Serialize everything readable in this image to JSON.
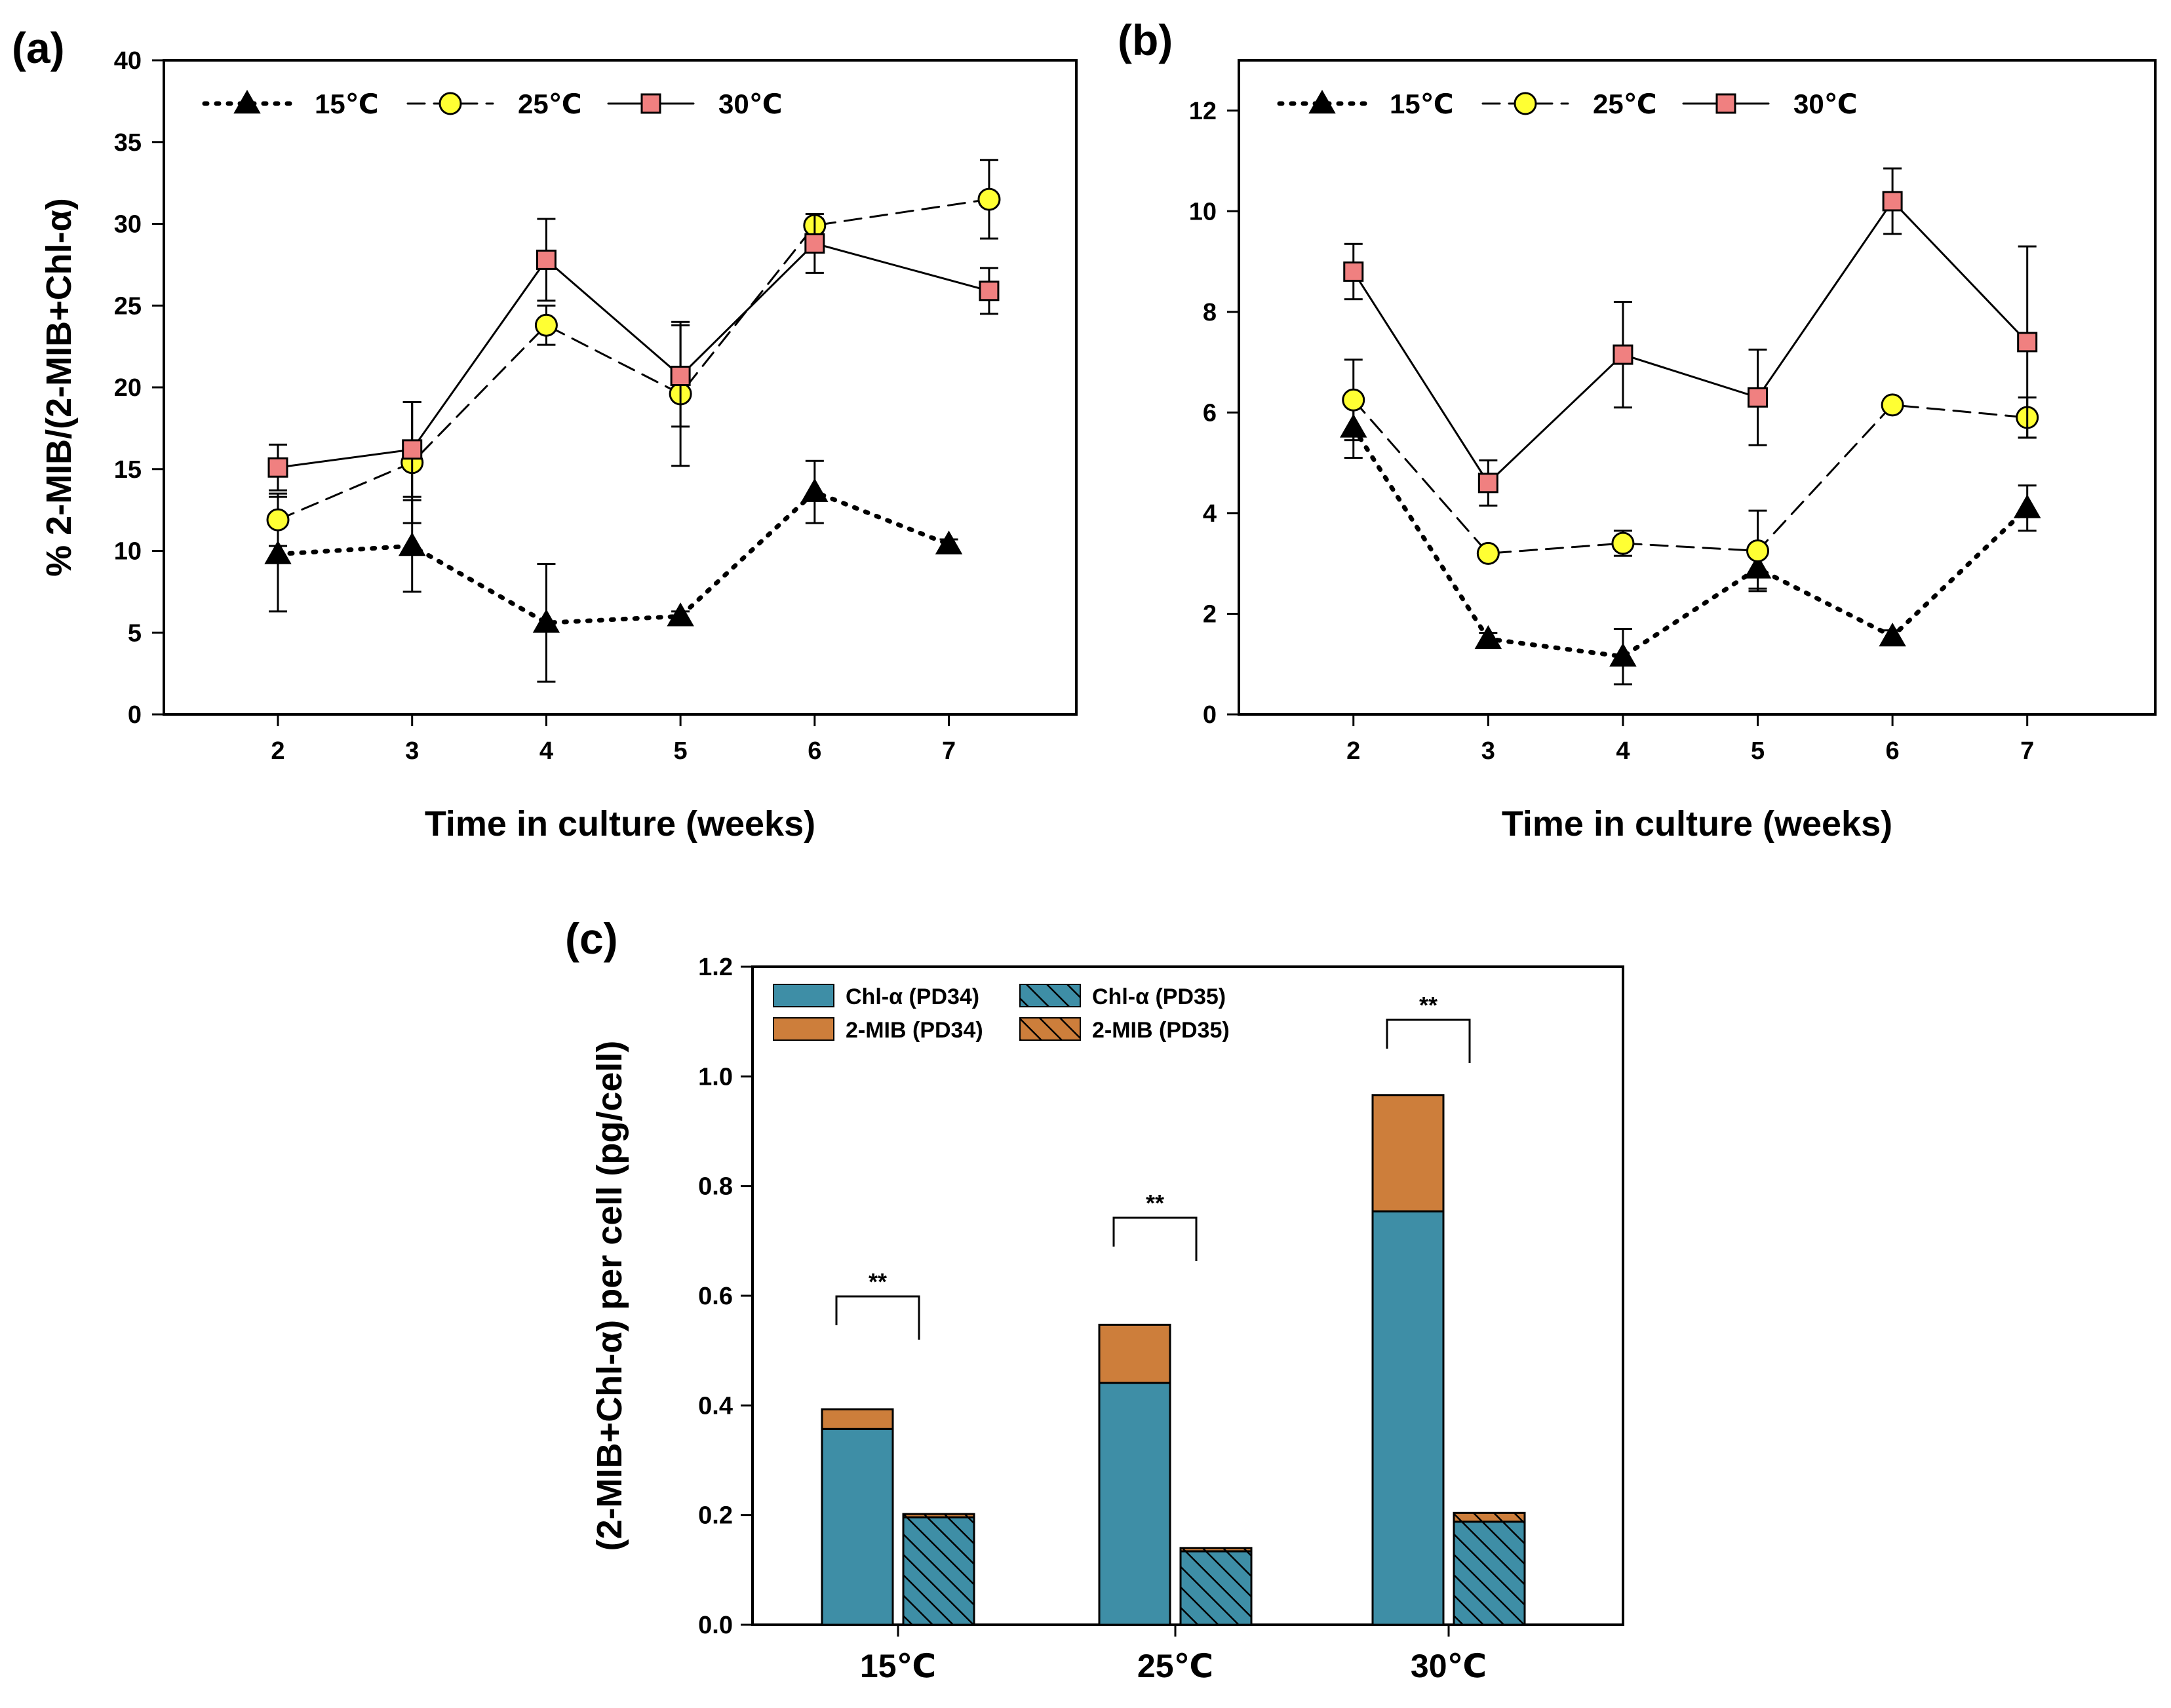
{
  "chart_data": [
    {
      "id": "a",
      "panel_label": "(a)",
      "type": "line",
      "xlabel": "Time in culture (weeks)",
      "ylabel": "% 2-MIB/(2-MIB+Chl-α)",
      "xlim": [
        1.15,
        7.95
      ],
      "ylim": [
        0,
        40
      ],
      "xticks": [
        2,
        3,
        4,
        5,
        6,
        7
      ],
      "yticks": [
        0,
        5,
        10,
        15,
        20,
        25,
        30,
        35,
        40
      ],
      "grid": false,
      "legend_position": "top-left",
      "series": [
        {
          "name": "15℃",
          "style": "dotted",
          "marker": "triangle",
          "marker_color": "#000000",
          "x": [
            2,
            3,
            4,
            5,
            6,
            7
          ],
          "y": [
            9.8,
            10.3,
            5.6,
            6.0,
            13.6,
            10.4
          ],
          "err": [
            3.5,
            2.8,
            3.6,
            0.3,
            1.9,
            0.3
          ]
        },
        {
          "name": "25℃",
          "style": "dashed",
          "marker": "circle",
          "marker_color": "#ffff33",
          "x": [
            2.0,
            3.0,
            4.0,
            5.0,
            6.0,
            7.3
          ],
          "y": [
            11.9,
            15.4,
            23.8,
            19.6,
            29.9,
            31.5
          ],
          "err": [
            1.6,
            3.7,
            1.2,
            4.4,
            0.4,
            2.4
          ]
        },
        {
          "name": "30℃",
          "style": "solid",
          "marker": "square",
          "marker_color": "#f08080",
          "x": [
            2.0,
            3.0,
            4.0,
            5.0,
            6.0,
            7.3
          ],
          "y": [
            15.1,
            16.2,
            27.8,
            20.7,
            28.8,
            25.9
          ],
          "err": [
            1.4,
            2.9,
            2.5,
            3.1,
            1.8,
            1.4
          ]
        }
      ]
    },
    {
      "id": "b",
      "panel_label": "(b)",
      "type": "line",
      "xlabel": "Time in culture (weeks)",
      "ylabel": "",
      "xlim": [
        1.15,
        7.95
      ],
      "ylim": [
        0,
        13
      ],
      "xticks": [
        2,
        3,
        4,
        5,
        6,
        7
      ],
      "yticks": [
        0,
        2,
        4,
        6,
        8,
        10,
        12
      ],
      "grid": false,
      "legend_position": "top-left",
      "series": [
        {
          "name": "15℃",
          "style": "dotted",
          "marker": "triangle",
          "marker_color": "#000000",
          "x": [
            2,
            3,
            4,
            5,
            6,
            7
          ],
          "y": [
            5.7,
            1.5,
            1.15,
            2.9,
            1.55,
            4.1
          ],
          "err": [
            0.6,
            0.12,
            0.55,
            0.4,
            0.12,
            0.45
          ]
        },
        {
          "name": "25℃",
          "style": "dashed",
          "marker": "circle",
          "marker_color": "#ffff33",
          "x": [
            2,
            3,
            4,
            5,
            6,
            7
          ],
          "y": [
            6.25,
            3.2,
            3.4,
            3.25,
            6.15,
            5.9
          ],
          "err": [
            0.8,
            0.1,
            0.25,
            0.8,
            0.1,
            0.4
          ]
        },
        {
          "name": "30℃",
          "style": "solid",
          "marker": "square",
          "marker_color": "#f08080",
          "x": [
            2,
            3,
            4,
            5,
            6,
            7
          ],
          "y": [
            8.8,
            4.6,
            7.15,
            6.3,
            10.2,
            7.4
          ],
          "err": [
            0.55,
            0.45,
            1.05,
            0.95,
            0.65,
            1.9
          ]
        }
      ]
    },
    {
      "id": "c",
      "panel_label": "(c)",
      "type": "bar",
      "stacked": true,
      "ylabel": "(2-MIB+Chl-α) per cell (pg/cell)",
      "xlabel": "",
      "ylim": [
        0,
        1.2
      ],
      "yticks": [
        "0.0",
        "0.2",
        "0.4",
        "0.6",
        "0.8",
        "1.0",
        "1.2"
      ],
      "categories": [
        "15℃",
        "25℃",
        "30℃"
      ],
      "grid": false,
      "legend_position": "top-left",
      "legend": [
        "Chl-α (PD34)",
        "2-MIB (PD34)",
        "Chl-α (PD35)",
        "2-MIB (PD35)"
      ],
      "colors": {
        "chl": "#3e8ea6",
        "mib": "#cd7e3b"
      },
      "groups": [
        {
          "PD34": {
            "chl": 0.357,
            "mib": 0.036
          },
          "PD35": {
            "chl": 0.196,
            "mib": 0.006
          },
          "significance": "**"
        },
        {
          "PD34": {
            "chl": 0.441,
            "mib": 0.106
          },
          "PD35": {
            "chl": 0.134,
            "mib": 0.006
          },
          "significance": "**"
        },
        {
          "PD34": {
            "chl": 0.754,
            "mib": 0.212
          },
          "PD35": {
            "chl": 0.188,
            "mib": 0.016
          },
          "significance": "**"
        }
      ]
    }
  ]
}
